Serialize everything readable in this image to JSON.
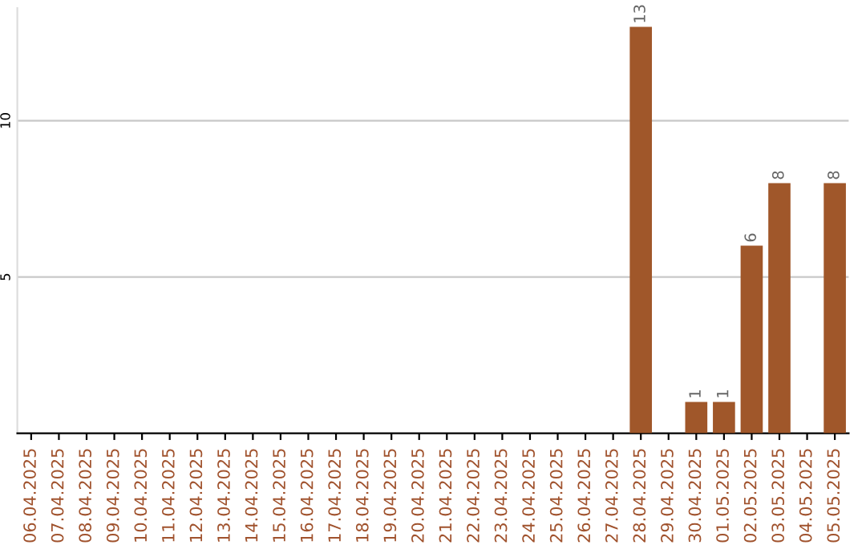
{
  "chart_data": {
    "type": "bar",
    "categories": [
      "06.04.2025",
      "07.04.2025",
      "08.04.2025",
      "09.04.2025",
      "10.04.2025",
      "11.04.2025",
      "12.04.2025",
      "13.04.2025",
      "14.04.2025",
      "15.04.2025",
      "16.04.2025",
      "17.04.2025",
      "18.04.2025",
      "19.04.2025",
      "20.04.2025",
      "21.04.2025",
      "22.04.2025",
      "23.04.2025",
      "24.04.2025",
      "25.04.2025",
      "26.04.2025",
      "27.04.2025",
      "28.04.2025",
      "29.04.2025",
      "30.04.2025",
      "01.05.2025",
      "02.05.2025",
      "03.05.2025",
      "04.05.2025",
      "05.05.2025"
    ],
    "values": [
      0,
      0,
      0,
      0,
      0,
      0,
      0,
      0,
      0,
      0,
      0,
      0,
      0,
      0,
      0,
      0,
      0,
      0,
      0,
      0,
      0,
      0,
      13,
      0,
      1,
      1,
      6,
      8,
      0,
      8
    ],
    "value_labels": [
      null,
      null,
      null,
      null,
      null,
      null,
      null,
      null,
      null,
      null,
      null,
      null,
      null,
      null,
      null,
      null,
      null,
      null,
      null,
      null,
      null,
      null,
      "13",
      null,
      "1",
      "1",
      "6",
      "8",
      null,
      "8"
    ],
    "color": "#a0572a",
    "ylim": [
      0,
      13.6
    ],
    "yticks": [
      5,
      10
    ],
    "grid": "y",
    "legend": false
  }
}
